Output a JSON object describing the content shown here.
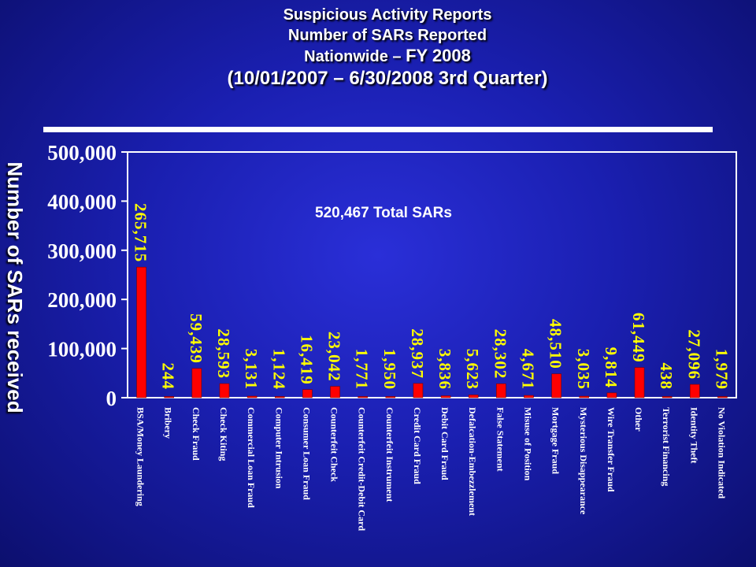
{
  "header": {
    "line1": "Suspicious Activity Reports",
    "line2": "Number of SARs Reported",
    "line3a": "Nationwide – ",
    "line3b": "FY 2008",
    "line4": "(10/01/2007 – 6/30/2008 3rd Quarter)"
  },
  "annotation": "520,467 Total SARs",
  "colors": {
    "bar": "#ff0000",
    "value_label": "#ffff00",
    "text": "#ffffff",
    "plot_border": "#ffffff"
  },
  "chart_data": {
    "type": "bar",
    "title": "Suspicious Activity Reports Number of SARs Reported Nationwide – FY 2008 (10/01/2007 – 6/30/2008 3rd Quarter)",
    "xlabel": "",
    "ylabel": "Number of SARs received",
    "ylim": [
      0,
      500000
    ],
    "yticks": [
      0,
      100000,
      200000,
      300000,
      400000,
      500000
    ],
    "ytick_labels": [
      "0",
      "100,000",
      "200,000",
      "300,000",
      "400,000",
      "500,000"
    ],
    "grid": false,
    "categories": [
      "BSA/Money Laundering",
      "Bribery",
      "Check Fraud",
      "Check Kiting",
      "Commercial Loan Fraud",
      "Computer Intrusion",
      "Consumer Loan Fraud",
      "Counterfeit Check",
      "Counterfeit Credit-Debit Card",
      "Counterfeit Instrument",
      "Credit Card Fraud",
      "Debit Card Fraud",
      "Defalcation-Embezzlement",
      "False Statement",
      "Misuse of Position",
      "Mortgage Fraud",
      "Mysterious Disappearance",
      "Wire Transfer Fraud",
      "Other",
      "Terrorist Financing",
      "Identity Theft",
      "No Violation Indicated"
    ],
    "values": [
      265715,
      244,
      59439,
      28593,
      3131,
      1124,
      16419,
      23042,
      1771,
      1950,
      28937,
      3836,
      5623,
      28302,
      4671,
      48510,
      3035,
      9814,
      61449,
      438,
      27096,
      1979
    ],
    "value_labels": [
      "265,715",
      "244",
      "59,439",
      "28,593",
      "3,131",
      "1,124",
      "16,419",
      "23,042",
      "1,771",
      "1,950",
      "28,937",
      "3,836",
      "5,623",
      "28,302",
      "4,671",
      "48,510",
      "3,035",
      "9,814",
      "61,449",
      "438",
      "27,096",
      "1,979"
    ],
    "annotation": "520,467 Total SARs"
  }
}
